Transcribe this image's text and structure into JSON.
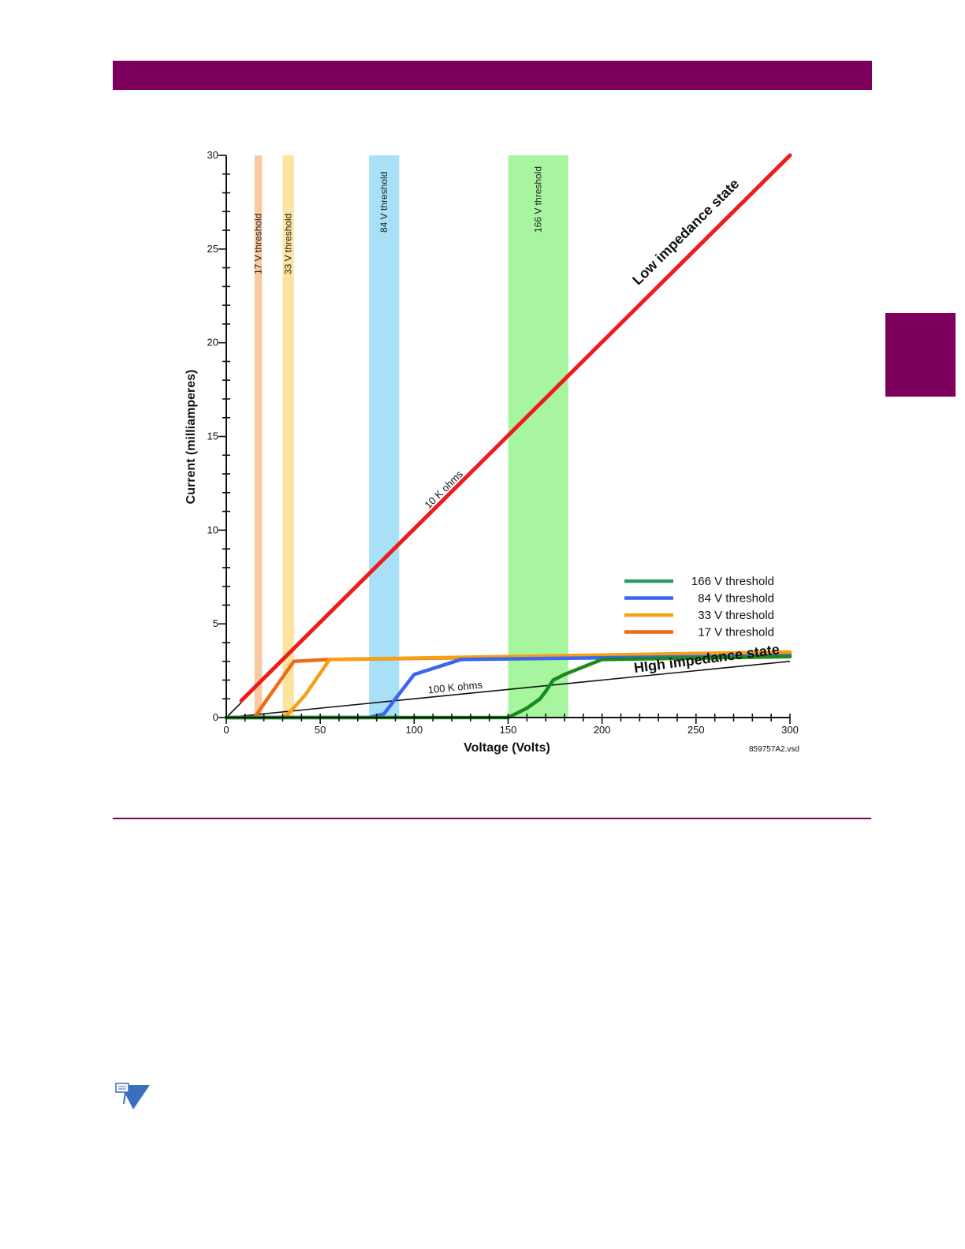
{
  "page": {
    "colors": {
      "brand": "#7d005c"
    },
    "note_icon": "note-pen-triangle-icon"
  },
  "chart_data": {
    "type": "line",
    "xlabel": "Voltage (Volts)",
    "ylabel": "Current (milliamperes)",
    "xlim": [
      0,
      300
    ],
    "ylim": [
      0,
      30
    ],
    "x_ticks": [
      0,
      50,
      100,
      150,
      200,
      250,
      300
    ],
    "y_ticks": [
      0,
      5,
      10,
      15,
      20,
      25,
      30
    ],
    "grid": false,
    "legend_position": "bottom-right",
    "figure_id": "859757A2.vsd",
    "bands": [
      {
        "label": "17 V threshold",
        "x": [
          15,
          19
        ],
        "color": "#f9c9a0"
      },
      {
        "label": "33 V threshold",
        "x": [
          30,
          36
        ],
        "color": "#fbe3a0"
      },
      {
        "label": "84 V threshold",
        "x": [
          76,
          92
        ],
        "color": "#a8e0f8"
      },
      {
        "label": "166 V threshold",
        "x": [
          150,
          182
        ],
        "color": "#a8f5a0"
      }
    ],
    "reference_lines": [
      {
        "label": "10 K ohms",
        "color": "#111111",
        "points": [
          [
            0,
            0
          ],
          [
            8,
            0.8
          ]
        ]
      },
      {
        "label": "100 K ohms",
        "color": "#111111",
        "points": [
          [
            0,
            0
          ],
          [
            300,
            3.0
          ]
        ]
      }
    ],
    "low_impedance": {
      "label": "Low impedance state",
      "color": "#ee1c1c",
      "points": [
        [
          8,
          0.9
        ],
        [
          300,
          30
        ]
      ]
    },
    "high_impedance_label": "HIgh impedance state",
    "series": [
      {
        "name": "166 V threshold",
        "legend_color": "#2e9a6a",
        "color": "#1a8a1a",
        "points": [
          [
            0,
            0
          ],
          [
            150,
            0
          ],
          [
            160,
            0.5
          ],
          [
            167,
            1.0
          ],
          [
            170,
            1.4
          ],
          [
            174,
            2.0
          ],
          [
            180,
            2.3
          ],
          [
            190,
            2.7
          ],
          [
            200,
            3.1
          ],
          [
            300,
            3.25
          ]
        ]
      },
      {
        "name": "84 V threshold",
        "legend_color": "#3a66f0",
        "color": "#3a66f0",
        "points": [
          [
            0,
            0
          ],
          [
            76,
            0
          ],
          [
            84,
            0.2
          ],
          [
            90,
            1.0
          ],
          [
            100,
            2.3
          ],
          [
            125,
            3.1
          ],
          [
            300,
            3.3
          ]
        ]
      },
      {
        "name": "33 V threshold",
        "legend_color": "#f5a015",
        "color": "#f5a015",
        "points": [
          [
            0,
            0
          ],
          [
            30,
            0
          ],
          [
            33,
            0.2
          ],
          [
            42,
            1.2
          ],
          [
            55,
            3.1
          ],
          [
            300,
            3.5
          ]
        ]
      },
      {
        "name": "17 V threshold",
        "legend_color": "#f06a15",
        "color": "#f06a15",
        "points": [
          [
            0,
            0
          ],
          [
            15,
            0
          ],
          [
            24,
            1.3
          ],
          [
            36,
            3.0
          ],
          [
            55,
            3.1
          ],
          [
            300,
            3.4
          ]
        ]
      }
    ]
  }
}
